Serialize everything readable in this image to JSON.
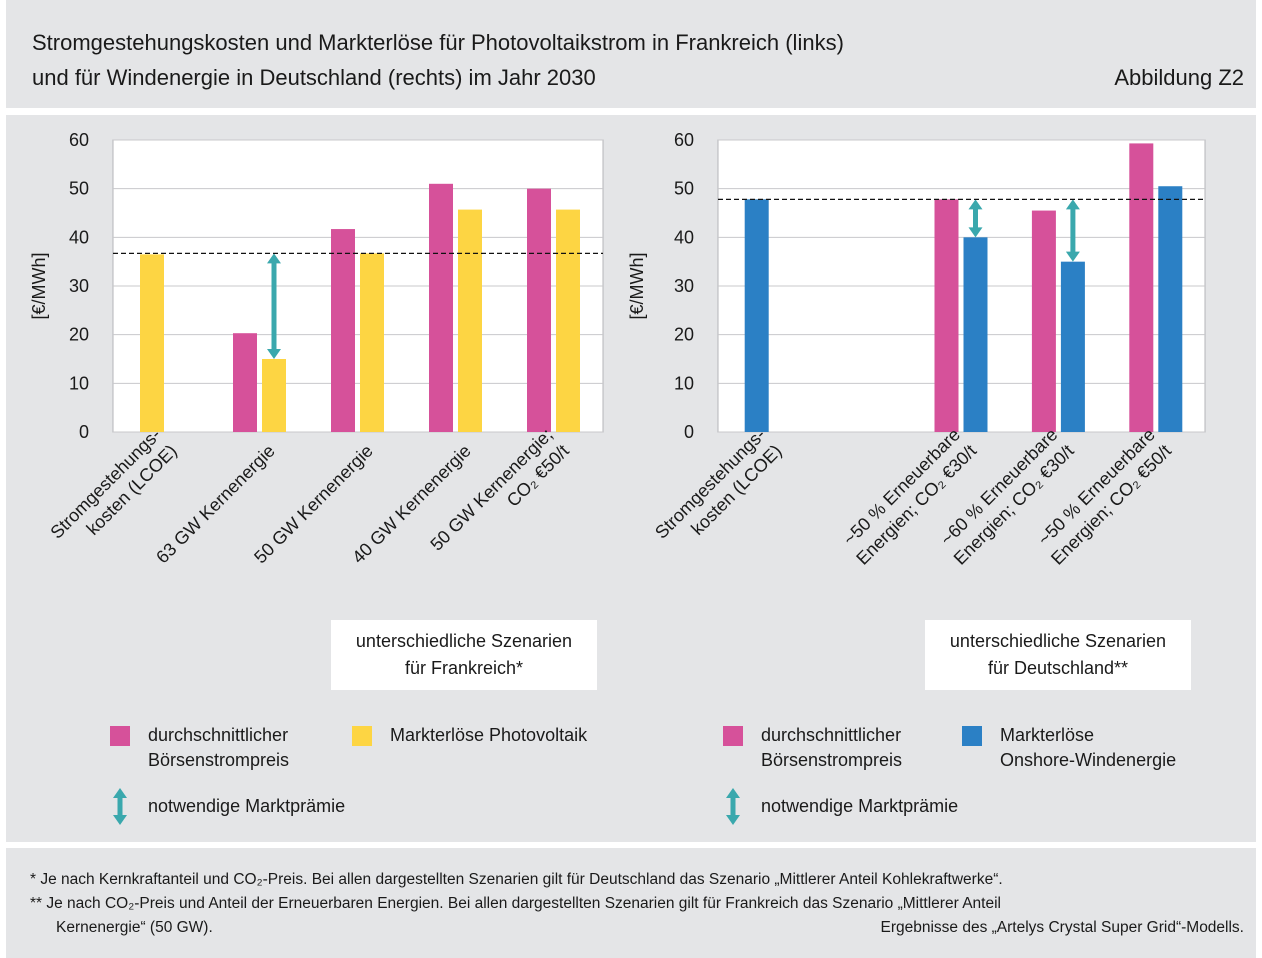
{
  "header": {
    "title_lines": [
      "Stromgestehungskosten und Markterlöse für Photovoltaikstrom in Frankreich (links)",
      "und für Windenergie in Deutschland (rechts) im Jahr 2030"
    ],
    "figure_label": "Abbildung Z2"
  },
  "chart_data": [
    {
      "type": "bar",
      "ylabel": "[€/MWh]",
      "categories": [
        [
          "Stromgestehungs-",
          "kosten (LCOE)"
        ],
        [
          "63 GW Kernenergie"
        ],
        [
          "50 GW Kernenergie"
        ],
        [
          "40 GW Kernenergie"
        ],
        [
          "50 GW Kernenergie;",
          "CO₂ €50/t"
        ]
      ],
      "series": [
        {
          "name": "durchschnittlicher\nBörsenstrompreis",
          "color": "#d6519a",
          "values": [
            null,
            20.3,
            41.7,
            51,
            50
          ]
        },
        {
          "name": "Markterlöse Photovoltaik",
          "color": "#fdd543",
          "values": [
            36.5,
            15,
            36.7,
            45.7,
            45.7
          ]
        }
      ],
      "reference_line": 36.7,
      "premium_arrows": [
        false,
        true,
        false,
        false,
        false
      ],
      "arrow_color": "#3aa8ad",
      "arrow_legend": "notwendige Marktprämie",
      "scenario_note": "unterschiedliche Szenarien\nfür Frankreich*",
      "ylim": [
        0,
        60
      ],
      "yticks": [
        0,
        10,
        20,
        30,
        40,
        50,
        60
      ],
      "grid": true
    },
    {
      "type": "bar",
      "ylabel": "[€/MWh]",
      "categories": [
        [
          "Stromgestehungs-",
          "kosten (LCOE)"
        ],
        null,
        [
          "~50 % Erneuerbare",
          "Energien; CO₂ €30/t"
        ],
        [
          "~60 % Erneuerbare",
          "Energien; CO₂ €30/t"
        ],
        [
          "~50 % Erneuerbare",
          "Energien; CO₂ €50/t"
        ]
      ],
      "series": [
        {
          "name": "durchschnittlicher\nBörsenstrompreis",
          "color": "#d6519a",
          "values": [
            null,
            null,
            47.8,
            45.5,
            59.3
          ]
        },
        {
          "name": "Markterlöse\nOnshore-Windenergie",
          "color": "#2b80c5",
          "values": [
            47.8,
            null,
            40,
            35,
            50.5
          ]
        }
      ],
      "reference_line": 47.8,
      "premium_arrows": [
        false,
        false,
        true,
        true,
        false
      ],
      "arrow_color": "#3aa8ad",
      "arrow_legend": "notwendige Marktprämie",
      "scenario_note": "unterschiedliche Szenarien\nfür Deutschland**",
      "ylim": [
        0,
        60
      ],
      "yticks": [
        0,
        10,
        20,
        30,
        40,
        50,
        60
      ],
      "grid": true
    }
  ],
  "footnotes": [
    "* Je nach Kernkraftanteil und CO₂-Preis. Bei allen dargestellten Szenarien gilt für Deutschland das Szenario „Mittlerer Anteil Kohlekraftwerke“.",
    "** Je nach CO₂-Preis und Anteil der Erneuerbaren Energien. Bei allen dargestellten Szenarien gilt für Frankreich das Szenario „Mittlerer Anteil Kernenergie“ (50 GW)."
  ],
  "source": "Ergebnisse des „Artelys Crystal Super Grid“-Modells."
}
